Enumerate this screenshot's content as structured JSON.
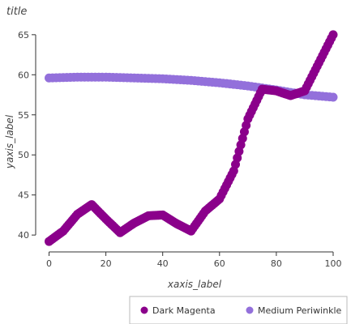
{
  "chart_data": {
    "type": "line",
    "title": "title",
    "xlabel": "xaxis_label",
    "ylabel": "yaxis_label",
    "xlim": [
      -3,
      104
    ],
    "ylim": [
      38.5,
      66.5
    ],
    "x_ticks": [
      0,
      20,
      40,
      60,
      80,
      100
    ],
    "y_ticks": [
      40,
      45,
      50,
      55,
      60,
      65
    ],
    "grid": false,
    "legend_position": "bottom-right",
    "series": [
      {
        "name": "Medium Periwinkle",
        "color": "#9370DB",
        "x": [
          0,
          10,
          20,
          30,
          40,
          50,
          60,
          70,
          80,
          90,
          100
        ],
        "y": [
          59.6,
          59.7,
          59.7,
          59.6,
          59.5,
          59.3,
          59.0,
          58.6,
          58.1,
          57.5,
          57.2
        ]
      },
      {
        "name": "Dark Magenta",
        "color": "#8B008B",
        "x": [
          0,
          5,
          10,
          15,
          20,
          25,
          30,
          35,
          40,
          45,
          50,
          55,
          60,
          65,
          70,
          75,
          80,
          85,
          90,
          95,
          100
        ],
        "y": [
          39.2,
          40.5,
          42.6,
          43.8,
          42.0,
          40.3,
          41.5,
          42.4,
          42.5,
          41.4,
          40.5,
          43.0,
          44.5,
          48.0,
          54.5,
          58.2,
          58.0,
          57.4,
          58.0,
          61.5,
          65.0
        ]
      }
    ]
  }
}
